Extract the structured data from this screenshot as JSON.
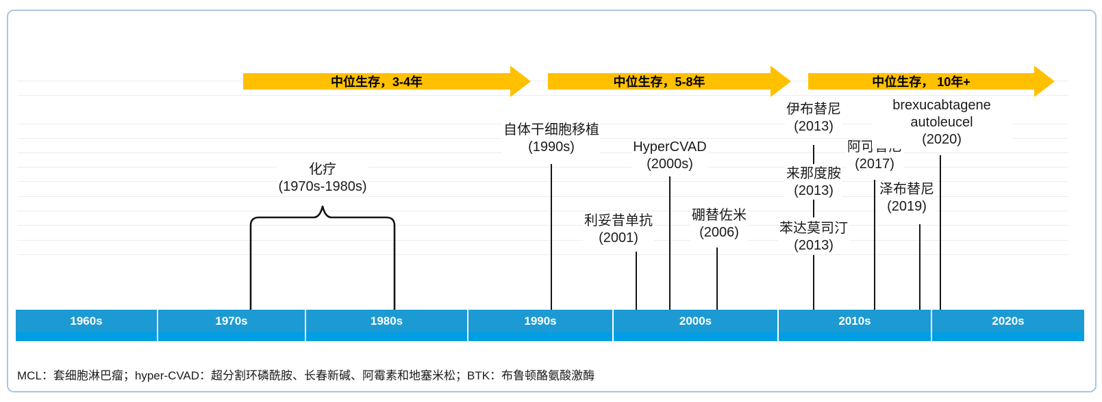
{
  "arrows": [
    {
      "label": "中位生存，3-4年"
    },
    {
      "label": "中位生存，5-8年"
    },
    {
      "label": "中位生存， 10年+"
    }
  ],
  "treatments": {
    "chemo": {
      "name": "化疗",
      "period": "(1970s-1980s)"
    },
    "asct": {
      "name": "自体干细胞移植",
      "period": "(1990s)"
    },
    "hypercvad": {
      "name": "HyperCVAD",
      "period": "(2000s)"
    },
    "rituximab": {
      "name": "利妥昔单抗",
      "period": "(2001)"
    },
    "bortezomib": {
      "name": "硼替佐米",
      "period": "(2006)"
    },
    "ibrutinib": {
      "name": "伊布替尼",
      "period": "(2013)"
    },
    "lenalidomide": {
      "name": "来那度胺",
      "period": "(2013)"
    },
    "bendamustine": {
      "name": "苯达莫司汀",
      "period": "(2013)"
    },
    "acalabrutinib": {
      "name": "阿可替尼",
      "period": "(2017)"
    },
    "zanubrutinib": {
      "name": "泽布替尼",
      "period": "(2019)"
    },
    "brexucabtagene": {
      "name": "brexucabtagene autoleucel",
      "period": "(2020)"
    }
  },
  "timeline": {
    "decades": [
      "1960s",
      "1970s",
      "1980s",
      "1990s",
      "2000s",
      "2010s",
      "2020s"
    ]
  },
  "footnote": "MCL：套细胞淋巴瘤；hyper-CVAD：超分割环磷酰胺、长春新碱、阿霉素和地塞米松；BTK：布鲁顿酪氨酸激酶",
  "colors": {
    "arrow_fill": "#FFC000",
    "timeline_blue": "#1C9AD3",
    "timeline_blue_bright": "#009EE2",
    "panel_border": "#A9C6E3",
    "connector_line": "#141414"
  }
}
